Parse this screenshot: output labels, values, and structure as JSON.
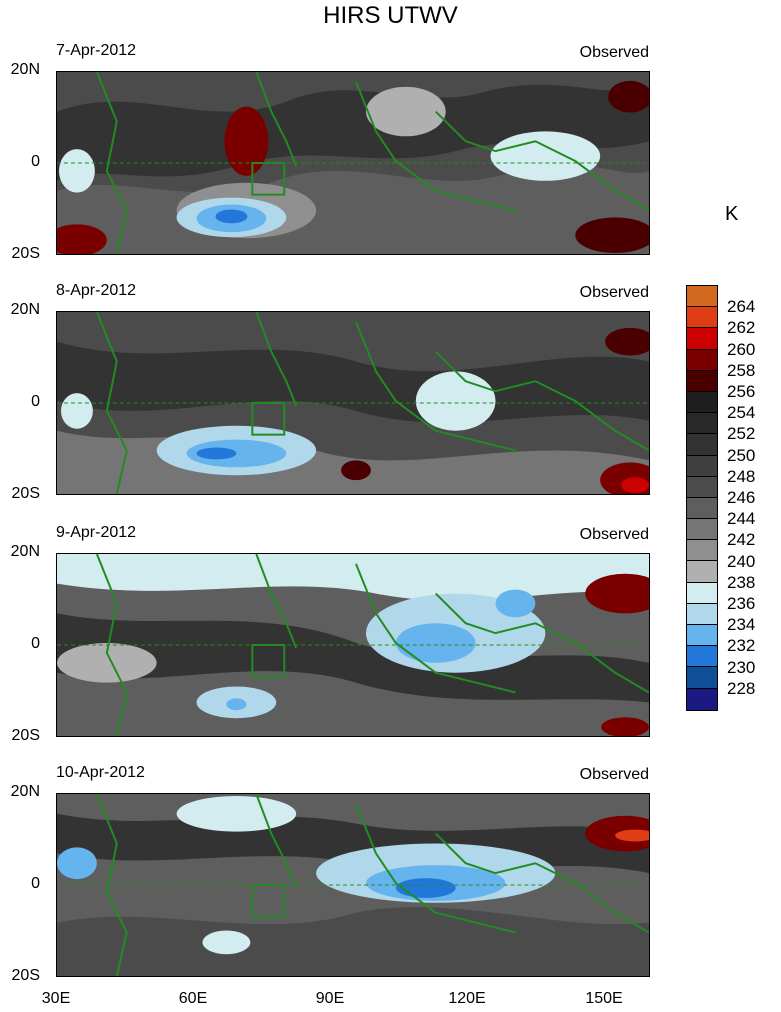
{
  "title": "HIRS UTWV",
  "units": "K",
  "panels": [
    {
      "date": "7-Apr-2012",
      "status": "Observed"
    },
    {
      "date": "8-Apr-2012",
      "status": "Observed"
    },
    {
      "date": "9-Apr-2012",
      "status": "Observed"
    },
    {
      "date": "10-Apr-2012",
      "status": "Observed"
    }
  ],
  "lat_labels": [
    "20N",
    "0",
    "20S"
  ],
  "lon_labels": [
    "30E",
    "60E",
    "90E",
    "120E",
    "150E"
  ],
  "colorbar": {
    "levels": [
      "264",
      "262",
      "260",
      "258",
      "256",
      "254",
      "252",
      "250",
      "248",
      "246",
      "244",
      "242",
      "240",
      "238",
      "236",
      "234",
      "232",
      "230",
      "228"
    ],
    "colors": [
      "#d2691e",
      "#e13d14",
      "#cc0000",
      "#7a0000",
      "#4a0000",
      "#1e1e1e",
      "#282828",
      "#333333",
      "#3f3f3f",
      "#4b4b4b",
      "#5e5e5e",
      "#757575",
      "#8f8f8f",
      "#b0b0b0",
      "#d3ecf0",
      "#b0d8ea",
      "#66b4ee",
      "#2277d8",
      "#0f4f96",
      "#1a1a80"
    ]
  }
}
